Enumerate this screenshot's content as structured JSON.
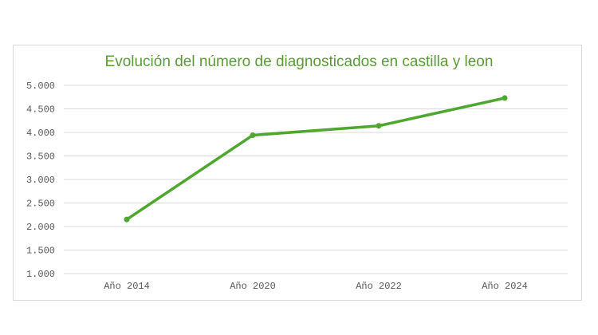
{
  "chart_data": {
    "type": "line",
    "title": "Evolución del número de diagnosticados en castilla y leon",
    "categories": [
      "Año 2014",
      "Año 2020",
      "Año 2022",
      "Año 2024"
    ],
    "series": [
      {
        "values": [
          2150,
          3940,
          4140,
          4730
        ],
        "color": "#4ea72e"
      }
    ],
    "ylim": [
      1000,
      5000
    ],
    "yticks": [
      1000,
      1500,
      2000,
      2500,
      3000,
      3500,
      4000,
      4500,
      5000
    ],
    "ytick_labels": [
      "1.000",
      "1.500",
      "2.000",
      "2.500",
      "3.000",
      "3.500",
      "4.000",
      "4.500",
      "5.000"
    ],
    "grid": true,
    "legend": "none"
  }
}
